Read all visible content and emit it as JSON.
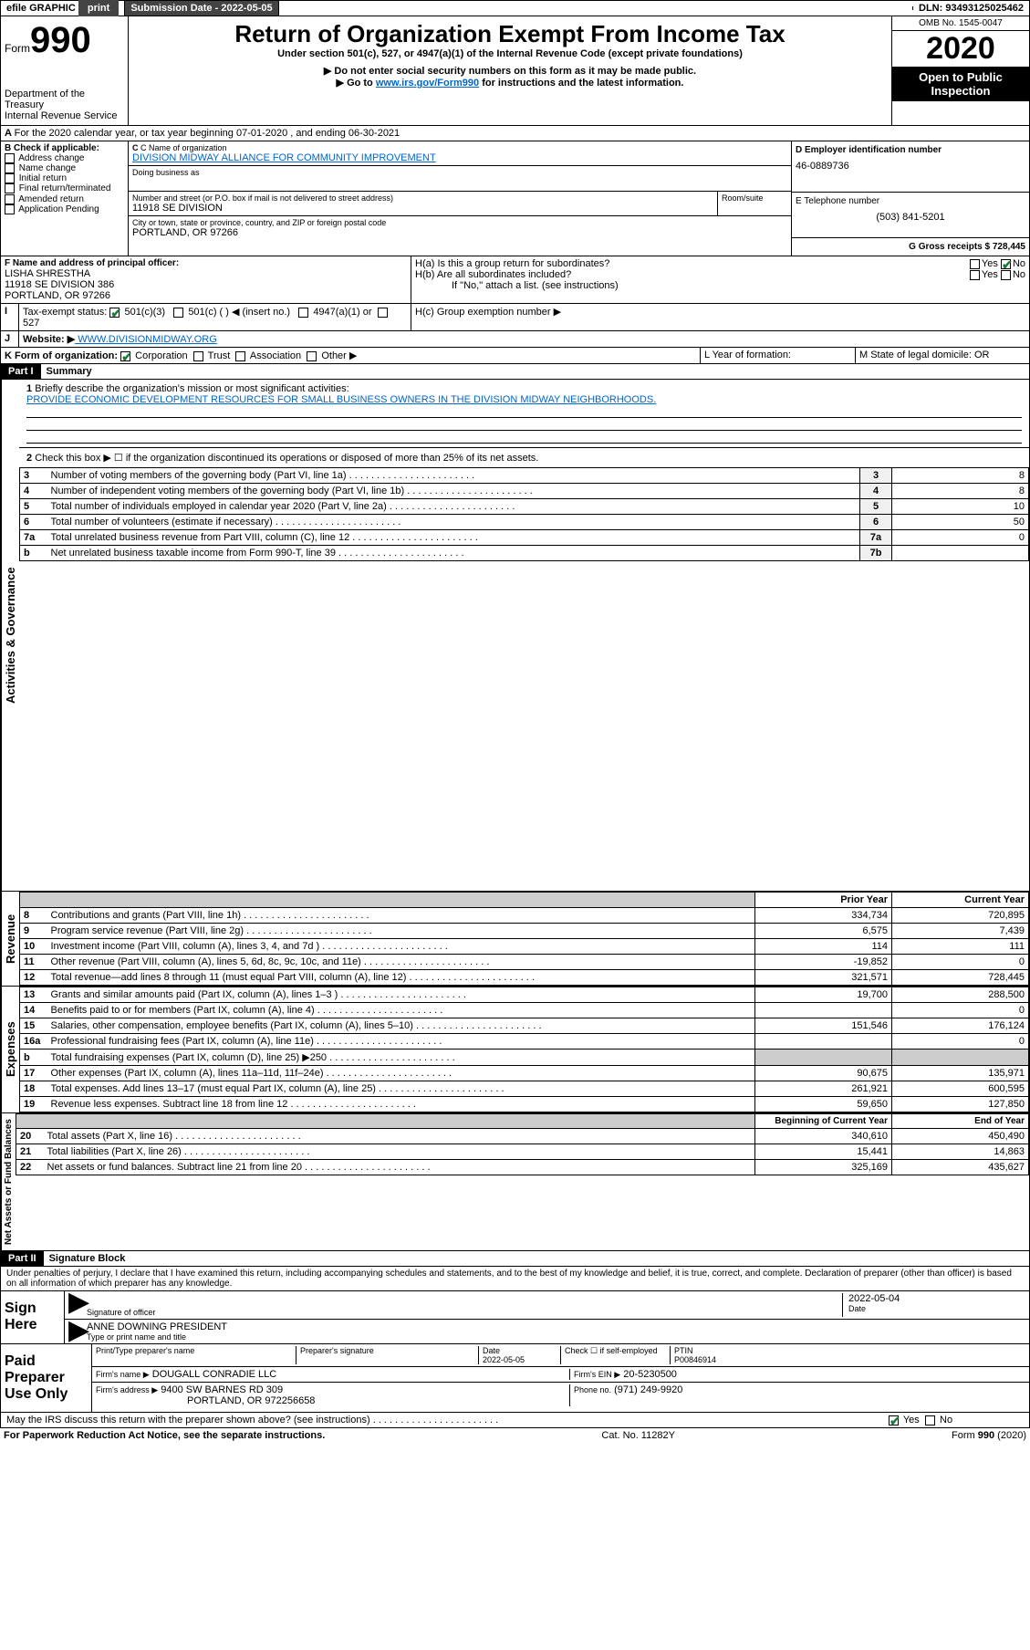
{
  "topbar": {
    "efile": "efile GRAPHIC",
    "print": "print",
    "sub_date_label": "Submission Date - 2022-05-05",
    "dln_label": "DLN: 93493125025462"
  },
  "header": {
    "form_label": "Form",
    "form_num": "990",
    "dept": "Department of the Treasury",
    "irs": "Internal Revenue Service",
    "title": "Return of Organization Exempt From Income Tax",
    "subtitle": "Under section 501(c), 527, or 4947(a)(1) of the Internal Revenue Code (except private foundations)",
    "instr1": "▶ Do not enter social security numbers on this form as it may be made public.",
    "instr2_pre": "▶ Go to ",
    "instr2_link": "www.irs.gov/Form990",
    "instr2_post": " for instructions and the latest information.",
    "omb": "OMB No. 1545-0047",
    "year": "2020",
    "open": "Open to Public Inspection"
  },
  "A": {
    "text": "For the 2020 calendar year, or tax year beginning 07-01-2020    , and ending 06-30-2021"
  },
  "B": {
    "label": "B Check if applicable:",
    "opts": [
      "Address change",
      "Name change",
      "Initial return",
      "Final return/terminated",
      "Amended return",
      "Application Pending"
    ]
  },
  "C": {
    "name_label": "C Name of organization",
    "name": "DIVISION MIDWAY ALLIANCE FOR COMMUNITY IMPROVEMENT",
    "dba_label": "Doing business as",
    "addr_label": "Number and street (or P.O. box if mail is not delivered to street address)",
    "room_label": "Room/suite",
    "addr": "11918 SE DIVISION",
    "city_label": "City or town, state or province, country, and ZIP or foreign postal code",
    "city": "PORTLAND, OR  97266"
  },
  "D": {
    "label": "D Employer identification number",
    "val": "46-0889736"
  },
  "E": {
    "label": "E Telephone number",
    "val": "(503) 841-5201"
  },
  "G": {
    "label": "G Gross receipts $ 728,445"
  },
  "F": {
    "label": "F  Name and address of principal officer:",
    "name": "LISHA SHRESTHA",
    "addr1": "11918 SE DIVISION 386",
    "addr2": "PORTLAND, OR  97266"
  },
  "H": {
    "a": "H(a)  Is this a group return for subordinates?",
    "b": "H(b)  Are all subordinates included?",
    "b_note": "If \"No,\" attach a list. (see instructions)",
    "c": "H(c)  Group exemption number ▶",
    "yes": "Yes",
    "no": "No"
  },
  "I": {
    "label": "Tax-exempt status:",
    "opts": [
      "501(c)(3)",
      "501(c) (  ) ◀ (insert no.)",
      "4947(a)(1) or",
      "527"
    ]
  },
  "J": {
    "label": "Website: ▶",
    "val": "  WWW.DIVISIONMIDWAY.ORG"
  },
  "K": {
    "label": "K Form of organization:",
    "opts": [
      "Corporation",
      "Trust",
      "Association",
      "Other ▶"
    ]
  },
  "L": {
    "label": "L Year of formation:"
  },
  "M": {
    "label": "M State of legal domicile: OR"
  },
  "part1": {
    "num": "Part I",
    "title": "Summary",
    "q1_label": "Briefly describe the organization's mission or most significant activities:",
    "q1_val": "PROVIDE ECONOMIC DEVELOPMENT RESOURCES FOR SMALL BUSINESS OWNERS IN THE DIVISION MIDWAY NEIGHBORHOODS.",
    "q2": "Check this box ▶ ☐  if the organization discontinued its operations or disposed of more than 25% of its net assets.",
    "governance_label": "Activities & Governance",
    "revenue_label": "Revenue",
    "expenses_label": "Expenses",
    "netassets_label": "Net Assets or Fund Balances",
    "rows_gov": [
      {
        "n": "3",
        "d": "Number of voting members of the governing body (Part VI, line 1a)",
        "k": "3",
        "v": "8"
      },
      {
        "n": "4",
        "d": "Number of independent voting members of the governing body (Part VI, line 1b)",
        "k": "4",
        "v": "8"
      },
      {
        "n": "5",
        "d": "Total number of individuals employed in calendar year 2020 (Part V, line 2a)",
        "k": "5",
        "v": "10"
      },
      {
        "n": "6",
        "d": "Total number of volunteers (estimate if necessary)",
        "k": "6",
        "v": "50"
      },
      {
        "n": "7a",
        "d": "Total unrelated business revenue from Part VIII, column (C), line 12",
        "k": "7a",
        "v": "0"
      },
      {
        "n": "b",
        "d": "Net unrelated business taxable income from Form 990-T, line 39",
        "k": "7b",
        "v": ""
      }
    ],
    "hdr_prior": "Prior Year",
    "hdr_curr": "Current Year",
    "rows_rev": [
      {
        "n": "8",
        "d": "Contributions and grants (Part VIII, line 1h)",
        "p": "334,734",
        "c": "720,895"
      },
      {
        "n": "9",
        "d": "Program service revenue (Part VIII, line 2g)",
        "p": "6,575",
        "c": "7,439"
      },
      {
        "n": "10",
        "d": "Investment income (Part VIII, column (A), lines 3, 4, and 7d )",
        "p": "114",
        "c": "111"
      },
      {
        "n": "11",
        "d": "Other revenue (Part VIII, column (A), lines 5, 6d, 8c, 9c, 10c, and 11e)",
        "p": "-19,852",
        "c": "0"
      },
      {
        "n": "12",
        "d": "Total revenue—add lines 8 through 11 (must equal Part VIII, column (A), line 12)",
        "p": "321,571",
        "c": "728,445"
      }
    ],
    "rows_exp": [
      {
        "n": "13",
        "d": "Grants and similar amounts paid (Part IX, column (A), lines 1–3 )",
        "p": "19,700",
        "c": "288,500"
      },
      {
        "n": "14",
        "d": "Benefits paid to or for members (Part IX, column (A), line 4)",
        "p": "",
        "c": "0"
      },
      {
        "n": "15",
        "d": "Salaries, other compensation, employee benefits (Part IX, column (A), lines 5–10)",
        "p": "151,546",
        "c": "176,124"
      },
      {
        "n": "16a",
        "d": "Professional fundraising fees (Part IX, column (A), line 11e)",
        "p": "",
        "c": "0"
      },
      {
        "n": "b",
        "d": "Total fundraising expenses (Part IX, column (D), line 25) ▶250",
        "p": "grey",
        "c": "grey"
      },
      {
        "n": "17",
        "d": "Other expenses (Part IX, column (A), lines 11a–11d, 11f–24e)",
        "p": "90,675",
        "c": "135,971"
      },
      {
        "n": "18",
        "d": "Total expenses. Add lines 13–17 (must equal Part IX, column (A), line 25)",
        "p": "261,921",
        "c": "600,595"
      },
      {
        "n": "19",
        "d": "Revenue less expenses. Subtract line 18 from line 12",
        "p": "59,650",
        "c": "127,850"
      }
    ],
    "hdr_begin": "Beginning of Current Year",
    "hdr_end": "End of Year",
    "rows_net": [
      {
        "n": "20",
        "d": "Total assets (Part X, line 16)",
        "p": "340,610",
        "c": "450,490"
      },
      {
        "n": "21",
        "d": "Total liabilities (Part X, line 26)",
        "p": "15,441",
        "c": "14,863"
      },
      {
        "n": "22",
        "d": "Net assets or fund balances. Subtract line 21 from line 20",
        "p": "325,169",
        "c": "435,627"
      }
    ]
  },
  "part2": {
    "num": "Part II",
    "title": "Signature Block",
    "decl": "Under penalties of perjury, I declare that I have examined this return, including accompanying schedules and statements, and to the best of my knowledge and belief, it is true, correct, and complete. Declaration of preparer (other than officer) is based on all information of which preparer has any knowledge.",
    "sign_here": "Sign Here",
    "sig_officer": "Signature of officer",
    "sig_date": "2022-05-04",
    "date_label": "Date",
    "officer_name": "ANNE DOWNING PRESIDENT",
    "type_name": "Type or print name and title",
    "paid_prep": "Paid Preparer Use Only",
    "prep_name_label": "Print/Type preparer's name",
    "prep_sig_label": "Preparer's signature",
    "prep_date": "2022-05-05",
    "check_self": "Check ☐  if self-employed",
    "ptin_label": "PTIN",
    "ptin": "P00846914",
    "firm_name_label": "Firm's name    ▶",
    "firm_name": "DOUGALL CONRADIE LLC",
    "firm_ein_label": "Firm's EIN ▶",
    "firm_ein": "20-5230500",
    "firm_addr_label": "Firm's address ▶",
    "firm_addr1": "9400 SW BARNES RD 309",
    "firm_addr2": "PORTLAND, OR  972256658",
    "phone_label": "Phone no.",
    "phone": "(971) 249-9920",
    "may_irs": "May the IRS discuss this return with the preparer shown above? (see instructions)"
  },
  "footer": {
    "paperwork": "For Paperwork Reduction Act Notice, see the separate instructions.",
    "cat": "Cat. No. 11282Y",
    "form": "Form 990 (2020)"
  }
}
